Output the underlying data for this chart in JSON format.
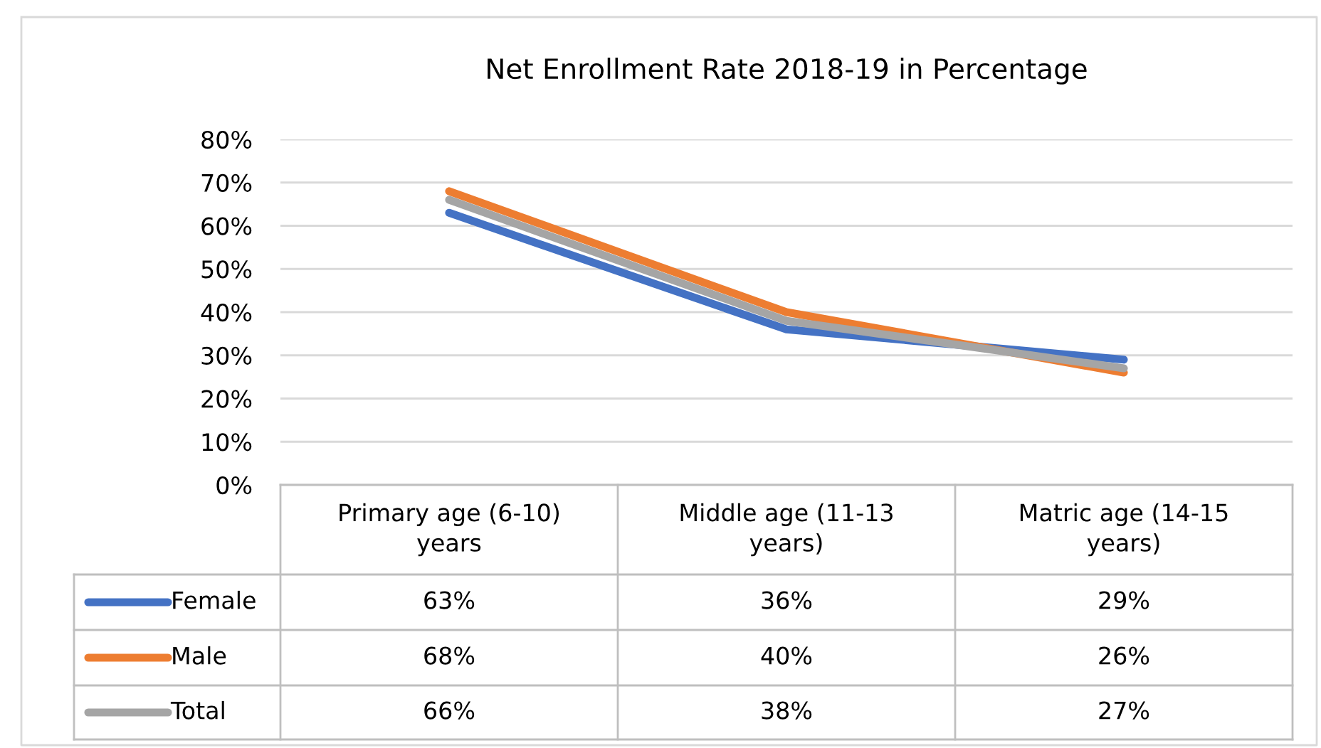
{
  "chart_data": {
    "type": "line",
    "title": "Net Enrollment Rate 2018-19 in Percentage",
    "categories": [
      "Primary age (6-10) years",
      "Middle age (11-13 years)",
      "Matric age (14-15 years)"
    ],
    "series": [
      {
        "name": "Female",
        "color": "#4472c4",
        "values": [
          63,
          36,
          29
        ],
        "value_labels": [
          "63%",
          "36%",
          "29%"
        ]
      },
      {
        "name": "Male",
        "color": "#ed7d31",
        "values": [
          68,
          40,
          26
        ],
        "value_labels": [
          "68%",
          "40%",
          "26%"
        ]
      },
      {
        "name": "Total",
        "color": "#a5a5a5",
        "values": [
          66,
          38,
          27
        ],
        "value_labels": [
          "66%",
          "38%",
          "27%"
        ]
      }
    ],
    "ylim": [
      0,
      80
    ],
    "yticks": [
      {
        "value": 0,
        "label": "0%"
      },
      {
        "value": 10,
        "label": "10%"
      },
      {
        "value": 20,
        "label": "20%"
      },
      {
        "value": 30,
        "label": "30%"
      },
      {
        "value": 40,
        "label": "40%"
      },
      {
        "value": 50,
        "label": "50%"
      },
      {
        "value": 60,
        "label": "60%"
      },
      {
        "value": 70,
        "label": "70%"
      },
      {
        "value": 80,
        "label": "80%"
      }
    ],
    "grid": "y",
    "legend": "bottom",
    "marker": "none",
    "line_style": "solid"
  }
}
